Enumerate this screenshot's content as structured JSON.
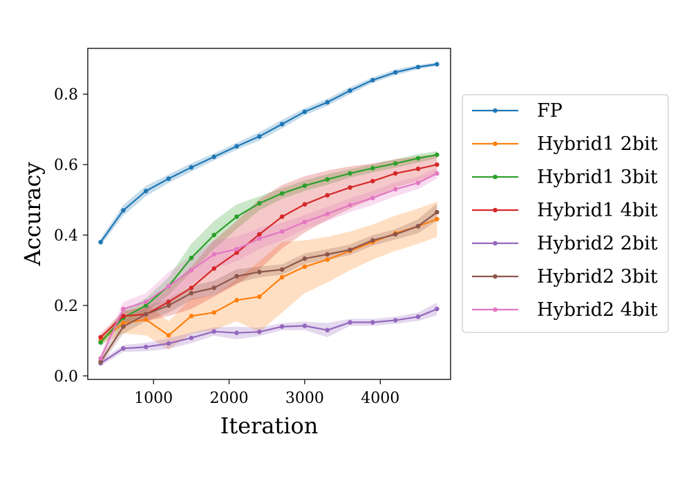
{
  "chart_data": {
    "type": "line",
    "title": "",
    "xlabel": "Iteration",
    "ylabel": "Accuracy",
    "xlim": [
      130,
      4930
    ],
    "ylim": [
      -0.01,
      0.93
    ],
    "xticks": [
      1000,
      2000,
      3000,
      4000
    ],
    "xtick_labels": [
      "1000",
      "2000",
      "3000",
      "4000"
    ],
    "yticks": [
      0.0,
      0.2,
      0.4,
      0.6,
      0.8
    ],
    "ytick_labels": [
      "0.0",
      "0.2",
      "0.4",
      "0.6",
      "0.8"
    ],
    "grid": false,
    "legend_position": "outside-right",
    "x": [
      300,
      600,
      900,
      1200,
      1500,
      1800,
      2100,
      2400,
      2700,
      3000,
      3300,
      3600,
      3900,
      4200,
      4500,
      4750
    ],
    "series": [
      {
        "name": "FP",
        "color": "#1f77b4",
        "values": [
          0.38,
          0.47,
          0.525,
          0.56,
          0.592,
          0.622,
          0.652,
          0.68,
          0.715,
          0.75,
          0.777,
          0.81,
          0.84,
          0.862,
          0.877,
          0.885
        ],
        "band": [
          0.01,
          0.015,
          0.015,
          0.012,
          0.012,
          0.01,
          0.01,
          0.012,
          0.012,
          0.01,
          0.01,
          0.01,
          0.008,
          0.008,
          0.006,
          0.005
        ]
      },
      {
        "name": "Hybrid1 2bit",
        "color": "#ff7f0e",
        "values": [
          0.1,
          0.15,
          0.16,
          0.115,
          0.17,
          0.18,
          0.215,
          0.225,
          0.28,
          0.31,
          0.33,
          0.355,
          0.38,
          0.405,
          0.425,
          0.445
        ],
        "band": [
          0.01,
          0.03,
          0.045,
          0.04,
          0.05,
          0.05,
          0.06,
          0.1,
          0.1,
          0.075,
          0.065,
          0.055,
          0.05,
          0.05,
          0.05,
          0.05
        ]
      },
      {
        "name": "Hybrid1 3bit",
        "color": "#2ca02c",
        "values": [
          0.095,
          0.165,
          0.2,
          0.255,
          0.335,
          0.4,
          0.452,
          0.49,
          0.518,
          0.54,
          0.558,
          0.575,
          0.59,
          0.603,
          0.618,
          0.628
        ],
        "band": [
          0.01,
          0.02,
          0.02,
          0.025,
          0.04,
          0.04,
          0.035,
          0.02,
          0.015,
          0.015,
          0.015,
          0.012,
          0.012,
          0.012,
          0.012,
          0.01
        ]
      },
      {
        "name": "Hybrid1 4bit",
        "color": "#d62728",
        "values": [
          0.11,
          0.17,
          0.175,
          0.21,
          0.25,
          0.305,
          0.35,
          0.402,
          0.452,
          0.487,
          0.513,
          0.535,
          0.553,
          0.575,
          0.588,
          0.6
        ],
        "band": [
          0.01,
          0.015,
          0.02,
          0.04,
          0.06,
          0.08,
          0.09,
          0.1,
          0.09,
          0.08,
          0.07,
          0.06,
          0.05,
          0.04,
          0.035,
          0.03
        ]
      },
      {
        "name": "Hybrid2 2bit",
        "color": "#9467bd",
        "values": [
          0.036,
          0.078,
          0.082,
          0.092,
          0.108,
          0.126,
          0.122,
          0.125,
          0.14,
          0.142,
          0.13,
          0.152,
          0.152,
          0.158,
          0.168,
          0.19
        ],
        "band": [
          0.008,
          0.01,
          0.012,
          0.015,
          0.015,
          0.012,
          0.018,
          0.012,
          0.01,
          0.012,
          0.02,
          0.01,
          0.01,
          0.01,
          0.012,
          0.018
        ]
      },
      {
        "name": "Hybrid2 3bit",
        "color": "#8c564b",
        "values": [
          0.04,
          0.14,
          0.175,
          0.2,
          0.235,
          0.25,
          0.283,
          0.295,
          0.302,
          0.333,
          0.345,
          0.358,
          0.385,
          0.402,
          0.425,
          0.465
        ],
        "band": [
          0.01,
          0.02,
          0.02,
          0.02,
          0.02,
          0.02,
          0.02,
          0.015,
          0.015,
          0.015,
          0.015,
          0.015,
          0.015,
          0.015,
          0.02,
          0.025
        ]
      },
      {
        "name": "Hybrid2 4bit",
        "color": "#e377c2",
        "values": [
          0.05,
          0.19,
          0.21,
          0.255,
          0.3,
          0.345,
          0.36,
          0.39,
          0.41,
          0.437,
          0.46,
          0.485,
          0.505,
          0.53,
          0.548,
          0.575
        ],
        "band": [
          0.01,
          0.02,
          0.025,
          0.04,
          0.04,
          0.04,
          0.035,
          0.03,
          0.025,
          0.02,
          0.02,
          0.02,
          0.02,
          0.02,
          0.018,
          0.015
        ]
      }
    ]
  }
}
